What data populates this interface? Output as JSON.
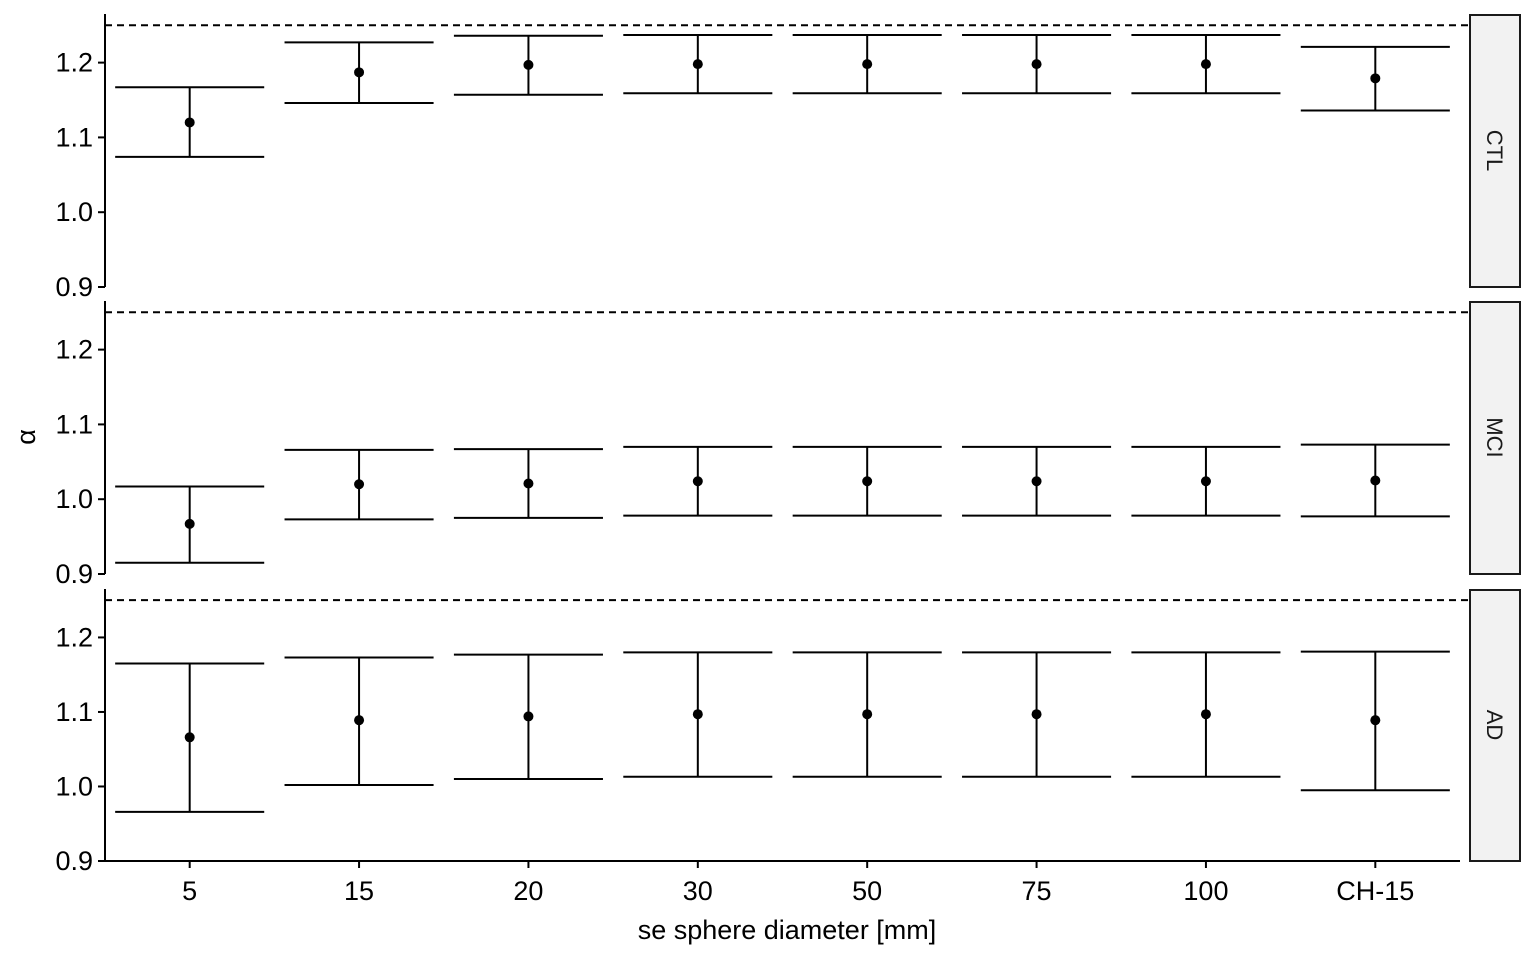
{
  "chart_data": {
    "type": "errorbar",
    "xlabel": "se sphere diameter [mm]",
    "ylabel": "α",
    "categories": [
      "5",
      "15",
      "20",
      "30",
      "50",
      "75",
      "100",
      "CH-15"
    ],
    "ylim": [
      0.9,
      1.265
    ],
    "yticks": [
      0.9,
      1.0,
      1.1,
      1.2
    ],
    "ytick_labels": [
      "0.9",
      "1.0",
      "1.1",
      "1.2"
    ],
    "reference_line": 1.25,
    "grid": false,
    "facets": [
      {
        "label": "CTL",
        "mean": [
          1.12,
          1.187,
          1.197,
          1.198,
          1.198,
          1.198,
          1.198,
          1.179
        ],
        "lower": [
          1.074,
          1.146,
          1.157,
          1.159,
          1.159,
          1.159,
          1.159,
          1.136
        ],
        "upper": [
          1.167,
          1.227,
          1.236,
          1.237,
          1.237,
          1.237,
          1.237,
          1.221
        ]
      },
      {
        "label": "MCI",
        "mean": [
          0.967,
          1.02,
          1.021,
          1.024,
          1.024,
          1.024,
          1.024,
          1.025
        ],
        "lower": [
          0.915,
          0.973,
          0.975,
          0.978,
          0.978,
          0.978,
          0.978,
          0.977
        ],
        "upper": [
          1.017,
          1.066,
          1.067,
          1.07,
          1.07,
          1.07,
          1.07,
          1.073
        ]
      },
      {
        "label": "AD",
        "mean": [
          1.066,
          1.089,
          1.094,
          1.097,
          1.097,
          1.097,
          1.097,
          1.089
        ],
        "lower": [
          0.966,
          1.002,
          1.01,
          1.013,
          1.013,
          1.013,
          1.013,
          0.995
        ],
        "upper": [
          1.165,
          1.173,
          1.177,
          1.18,
          1.18,
          1.18,
          1.18,
          1.181
        ]
      }
    ]
  }
}
